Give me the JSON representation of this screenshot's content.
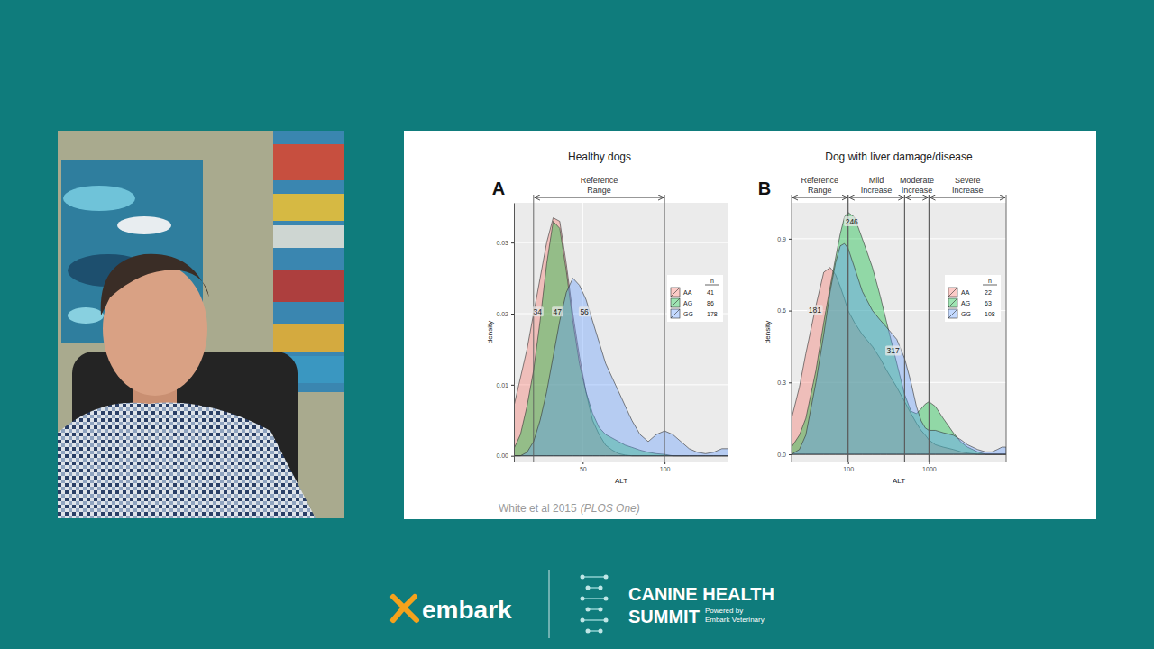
{
  "chart_data": [
    {
      "type": "area",
      "panel": "A",
      "title": "Healthy dogs",
      "x_label": "ALT",
      "y_label": "density",
      "x": [
        8,
        12,
        16,
        20,
        24,
        28,
        32,
        36,
        40,
        44,
        48,
        52,
        56,
        60,
        64,
        68,
        72,
        76,
        80,
        85,
        90,
        95,
        100,
        105,
        110,
        115,
        120,
        125,
        130,
        135,
        139
      ],
      "series": [
        {
          "name": "AA",
          "n": 41,
          "color": "#F8766D",
          "values": [
            0.007,
            0.011,
            0.015,
            0.02,
            0.025,
            0.03,
            0.0335,
            0.033,
            0.027,
            0.02,
            0.014,
            0.009,
            0.005,
            0.003,
            0.0015,
            0.0008,
            0.0003,
            0.0001,
            0,
            0,
            0,
            0,
            0,
            0,
            0,
            0,
            0,
            0,
            0,
            0,
            0
          ]
        },
        {
          "name": "AG",
          "n": 86,
          "color": "#00BA38",
          "values": [
            0.001,
            0.003,
            0.007,
            0.012,
            0.019,
            0.027,
            0.033,
            0.032,
            0.026,
            0.019,
            0.013,
            0.009,
            0.006,
            0.004,
            0.003,
            0.0025,
            0.002,
            0.0015,
            0.0012,
            0.0008,
            0.0005,
            0.0003,
            0.0002,
            0,
            0,
            0,
            0,
            0,
            0,
            0,
            0
          ]
        },
        {
          "name": "GG",
          "n": 178,
          "color": "#619CFF",
          "values": [
            0,
            0,
            0.0005,
            0.002,
            0.005,
            0.009,
            0.014,
            0.019,
            0.023,
            0.025,
            0.024,
            0.022,
            0.019,
            0.016,
            0.013,
            0.011,
            0.009,
            0.007,
            0.005,
            0.003,
            0.002,
            0.003,
            0.0035,
            0.003,
            0.002,
            0.001,
            0.0005,
            0.0003,
            0.0005,
            0.001,
            0.001
          ]
        }
      ],
      "xlim": [
        8,
        139
      ],
      "xticks": [
        50,
        100
      ],
      "ylim": [
        -0.0008,
        0.0356
      ],
      "yticks": [
        {
          "value": 0,
          "label": "0.00"
        },
        0.01,
        0.02,
        0.03
      ],
      "grid": true,
      "legend": "right",
      "legend_title": "n",
      "ranges": [
        {
          "label": "Reference Range",
          "from": 20,
          "to": 100
        }
      ],
      "annotations": [
        {
          "text": "34",
          "x": 22.5,
          "y": 0.0202
        },
        {
          "text": "47",
          "x": 34.6,
          "y": 0.0202
        },
        {
          "text": "56",
          "x": 51,
          "y": 0.0202
        }
      ]
    },
    {
      "type": "area",
      "panel": "B",
      "title": "Dog with liver damage/disease",
      "x_label": "ALT",
      "y_label": "density",
      "x": [
        20,
        25,
        30,
        40,
        50,
        60,
        70,
        80,
        90,
        100,
        120,
        150,
        200,
        250,
        300,
        400,
        500,
        600,
        700,
        800,
        900,
        1000,
        1200,
        1500,
        2000,
        2500,
        3000,
        4000,
        5000,
        6000,
        7000,
        8000,
        9000
      ],
      "series": [
        {
          "name": "AA",
          "n": 22,
          "color": "#F8766D",
          "values": [
            0.15,
            0.28,
            0.42,
            0.62,
            0.76,
            0.78,
            0.75,
            0.7,
            0.65,
            0.6,
            0.55,
            0.5,
            0.45,
            0.4,
            0.35,
            0.28,
            0.22,
            0.17,
            0.13,
            0.1,
            0.08,
            0.06,
            0.04,
            0.03,
            0.02,
            0.01,
            0.005,
            0,
            0,
            0,
            0,
            0,
            0
          ]
        },
        {
          "name": "AG",
          "n": 63,
          "color": "#00BA38",
          "values": [
            0.03,
            0.08,
            0.15,
            0.35,
            0.55,
            0.7,
            0.82,
            0.92,
            0.99,
            1.01,
            0.99,
            0.9,
            0.78,
            0.66,
            0.55,
            0.38,
            0.25,
            0.18,
            0.17,
            0.19,
            0.21,
            0.22,
            0.2,
            0.15,
            0.09,
            0.05,
            0.03,
            0.01,
            0,
            0,
            0,
            0,
            0
          ]
        },
        {
          "name": "GG",
          "n": 108,
          "color": "#619CFF",
          "values": [
            0,
            0.02,
            0.08,
            0.3,
            0.5,
            0.68,
            0.8,
            0.87,
            0.88,
            0.86,
            0.78,
            0.68,
            0.6,
            0.56,
            0.53,
            0.48,
            0.4,
            0.3,
            0.2,
            0.14,
            0.11,
            0.1,
            0.1,
            0.09,
            0.08,
            0.06,
            0.04,
            0.02,
            0.01,
            0.01,
            0.02,
            0.03,
            0.03
          ]
        }
      ],
      "xlim": [
        20,
        9000
      ],
      "xticks": [
        100,
        1000
      ],
      "log": "x",
      "ylim": [
        -0.03,
        1.05
      ],
      "yticks": [
        {
          "value": 0,
          "label": "0.0"
        },
        0.3,
        0.6,
        0.9
      ],
      "grid": true,
      "legend": "right",
      "legend_title": "n",
      "ranges": [
        {
          "label": "Reference Range",
          "from": 20,
          "to": 100
        },
        {
          "label": "Mild Increase",
          "from": 100,
          "to": 500
        },
        {
          "label": "Moderate Increase",
          "from": 500,
          "to": 1000
        },
        {
          "label": "Severe Increase",
          "from": 1000,
          "to": 9000
        }
      ],
      "annotations": [
        {
          "text": "181",
          "x": 38.8,
          "y": 0.6
        },
        {
          "text": "246",
          "x": 111,
          "y": 0.97
        },
        {
          "text": "317",
          "x": 360,
          "y": 0.43
        }
      ]
    }
  ],
  "slide": {
    "citation": "White et al 2015",
    "journal": "(PLOS One)"
  },
  "branding": {
    "logo": "embark",
    "event": [
      "CANINE HEALTH",
      "SUMMIT"
    ],
    "powered_by": [
      "Powered by",
      "Embark Veterinary"
    ]
  }
}
